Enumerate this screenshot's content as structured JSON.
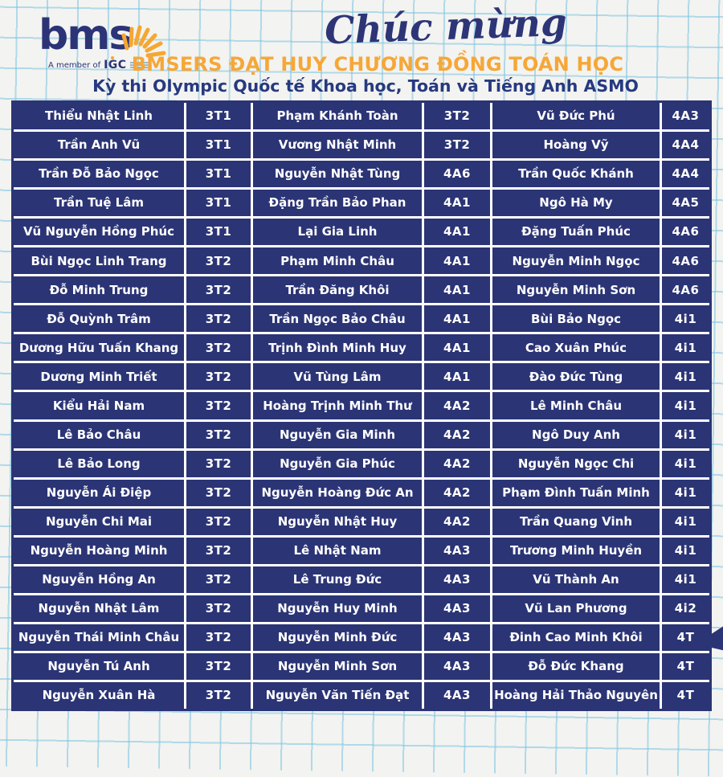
{
  "page": {
    "background_color": "#f3f3f1",
    "grid_line_color": "#78c4e0",
    "accent_navy": "#2b3475",
    "accent_orange": "#f6a737",
    "table_text_color": "#ffffff"
  },
  "header": {
    "logo_text": "bms",
    "member_prefix": "A member of",
    "member_org": "IGC",
    "script_title": "Chúc mừng",
    "headline": "BMSERS ĐẠT HUY CHƯƠNG ĐỒNG TOÁN HỌC",
    "subtitle": "Kỳ thi Olympic Quốc tế Khoa học, Toán và Tiếng Anh ASMO"
  },
  "table": {
    "rows": [
      [
        "Thiểu Nhật Linh",
        "3T1",
        "Phạm Khánh Toàn",
        "3T2",
        "Vũ Đức Phú",
        "4A3"
      ],
      [
        "Trần Anh Vũ",
        "3T1",
        "Vương Nhật Minh",
        "3T2",
        "Hoàng Vỹ",
        "4A4"
      ],
      [
        "Trần Đỗ Bảo Ngọc",
        "3T1",
        "Nguyễn Nhật Tùng",
        "4A6",
        "Trần Quốc Khánh",
        "4A4"
      ],
      [
        "Trần Tuệ Lâm",
        "3T1",
        "Đặng Trần Bảo Phan",
        "4A1",
        "Ngô Hà My",
        "4A5"
      ],
      [
        "Vũ Nguyễn Hồng Phúc",
        "3T1",
        "Lại Gia Linh",
        "4A1",
        "Đặng Tuấn Phúc",
        "4A6"
      ],
      [
        "Bùi Ngọc Linh Trang",
        "3T2",
        "Phạm Minh Châu",
        "4A1",
        "Nguyễn Minh Ngọc",
        "4A6"
      ],
      [
        "Đỗ Minh Trung",
        "3T2",
        "Trần Đăng Khôi",
        "4A1",
        "Nguyễn Minh Sơn",
        "4A6"
      ],
      [
        "Đỗ Quỳnh Trâm",
        "3T2",
        "Trần Ngọc Bảo Châu",
        "4A1",
        "Bùi Bảo Ngọc",
        "4i1"
      ],
      [
        "Dương Hữu Tuấn Khang",
        "3T2",
        "Trịnh Đình Minh Huy",
        "4A1",
        "Cao Xuân Phúc",
        "4i1"
      ],
      [
        "Dương Minh Triết",
        "3T2",
        "Vũ Tùng Lâm",
        "4A1",
        "Đào Đức Tùng",
        "4i1"
      ],
      [
        "Kiểu Hải Nam",
        "3T2",
        "Hoàng Trịnh Minh Thư",
        "4A2",
        "Lê Minh Châu",
        "4i1"
      ],
      [
        "Lê Bảo Châu",
        "3T2",
        "Nguyễn Gia Minh",
        "4A2",
        "Ngô Duy Anh",
        "4i1"
      ],
      [
        "Lê Bảo Long",
        "3T2",
        "Nguyễn Gia Phúc",
        "4A2",
        "Nguyễn Ngọc Chi",
        "4i1"
      ],
      [
        "Nguyễn Ái Điệp",
        "3T2",
        "Nguyễn Hoàng Đức An",
        "4A2",
        "Phạm Đình Tuấn Minh",
        "4i1"
      ],
      [
        "Nguyễn Chi Mai",
        "3T2",
        "Nguyễn Nhật Huy",
        "4A2",
        "Trần Quang Vinh",
        "4i1"
      ],
      [
        "Nguyễn Hoàng Minh",
        "3T2",
        "Lê Nhật Nam",
        "4A3",
        "Trương Minh Huyền",
        "4i1"
      ],
      [
        "Nguyễn Hồng An",
        "3T2",
        "Lê Trung Đức",
        "4A3",
        "Vũ Thành An",
        "4i1"
      ],
      [
        "Nguyễn Nhật Lâm",
        "3T2",
        "Nguyễn Huy Minh",
        "4A3",
        "Vũ Lan Phương",
        "4i2"
      ],
      [
        "Nguyễn Thái Minh Châu",
        "3T2",
        "Nguyễn Minh Đức",
        "4A3",
        "Đinh Cao Minh Khôi",
        "4T"
      ],
      [
        "Nguyễn Tú Anh",
        "3T2",
        "Nguyễn Minh Sơn",
        "4A3",
        "Đỗ Đức Khang",
        "4T"
      ],
      [
        "Nguyễn Xuân Hà",
        "3T2",
        "Nguyễn Văn Tiến Đạt",
        "4A3",
        "Hoàng Hải Thảo Nguyên",
        "4T"
      ]
    ]
  }
}
